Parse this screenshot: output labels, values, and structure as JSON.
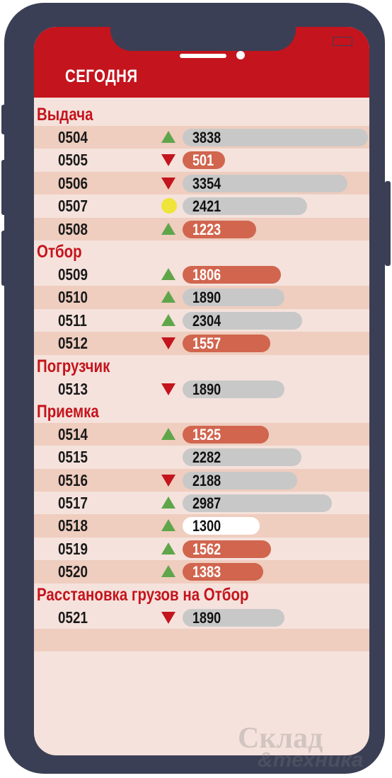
{
  "header": {
    "title": "СЕГОДНЯ"
  },
  "watermark": {
    "line1": "Склад",
    "line2": "&техника"
  },
  "colors": {
    "red": "#c4141d",
    "green": "#5fa64a",
    "yellow": "#eee43a",
    "orange": "#d1654e",
    "gray": "#c8c8c8",
    "frame": "#3b3f55"
  },
  "groups": [
    {
      "name": "Выдача",
      "rows": [
        {
          "code": "0504",
          "trend": "up",
          "value": "3838",
          "style": "gray"
        },
        {
          "code": "0505",
          "trend": "down",
          "value": "501",
          "style": "orange"
        },
        {
          "code": "0506",
          "trend": "down",
          "value": "3354",
          "style": "gray"
        },
        {
          "code": "0507",
          "trend": "neutral",
          "value": "2421",
          "style": "gray"
        },
        {
          "code": "0508",
          "trend": "up",
          "value": "1223",
          "style": "orange"
        }
      ]
    },
    {
      "name": "Отбор",
      "rows": [
        {
          "code": "0509",
          "trend": "up",
          "value": "1806",
          "style": "orange"
        },
        {
          "code": "0510",
          "trend": "up",
          "value": "1890",
          "style": "gray"
        },
        {
          "code": "0511",
          "trend": "up",
          "value": "2304",
          "style": "gray"
        },
        {
          "code": "0512",
          "trend": "down",
          "value": "1557",
          "style": "orange"
        }
      ]
    },
    {
      "name": "Погрузчик",
      "rows": [
        {
          "code": "0513",
          "trend": "down",
          "value": "1890",
          "style": "gray"
        }
      ]
    },
    {
      "name": "Приемка",
      "rows": [
        {
          "code": "0514",
          "trend": "up",
          "value": "1525",
          "style": "orange"
        },
        {
          "code": "0515",
          "trend": "none",
          "value": "2282",
          "style": "gray"
        },
        {
          "code": "0516",
          "trend": "down",
          "value": "2188",
          "style": "gray"
        },
        {
          "code": "0517",
          "trend": "up",
          "value": "2987",
          "style": "gray"
        },
        {
          "code": "0518",
          "trend": "up",
          "value": "1300",
          "style": "white"
        },
        {
          "code": "0519",
          "trend": "up",
          "value": "1562",
          "style": "orange"
        },
        {
          "code": "0520",
          "trend": "up",
          "value": "1383",
          "style": "orange"
        }
      ]
    },
    {
      "name": "Расстановка грузов на Отбор",
      "rows": [
        {
          "code": "0521",
          "trend": "down",
          "value": "1890",
          "style": "gray"
        }
      ]
    }
  ]
}
